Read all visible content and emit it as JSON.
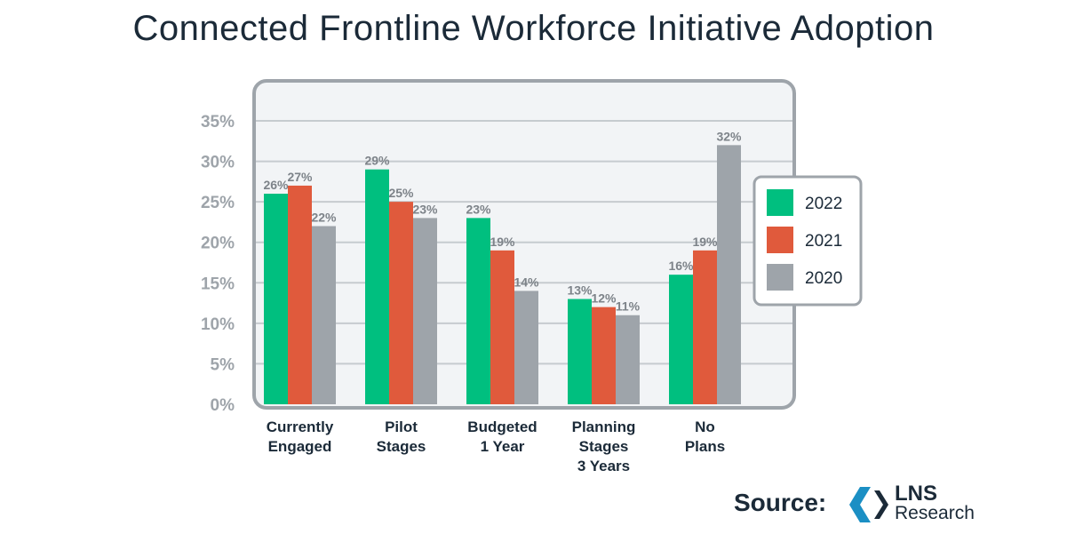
{
  "chart_data": {
    "type": "bar",
    "title": "Connected Frontline Workforce Initiative Adoption",
    "categories": [
      [
        "Currently",
        "Engaged"
      ],
      [
        "Pilot",
        "Stages"
      ],
      [
        "Budgeted",
        "1 Year"
      ],
      [
        "Planning",
        "Stages",
        "3 Years"
      ],
      [
        "No",
        "Plans"
      ]
    ],
    "series": [
      {
        "name": "2022",
        "color": "#00bf7f",
        "values": [
          26,
          29,
          23,
          13,
          16
        ]
      },
      {
        "name": "2021",
        "color": "#e05a3c",
        "values": [
          27,
          25,
          19,
          12,
          19
        ]
      },
      {
        "name": "2020",
        "color": "#9ea4aa",
        "values": [
          22,
          23,
          14,
          11,
          32
        ]
      }
    ],
    "ylim": [
      0,
      35
    ],
    "yticks": [
      "0%",
      "5%",
      "10%",
      "15%",
      "20%",
      "25%",
      "30%",
      "35%"
    ],
    "grid": true,
    "legend": "right"
  },
  "source_label": "Source:",
  "logo": {
    "line1": "LNS",
    "line2": "Research"
  }
}
